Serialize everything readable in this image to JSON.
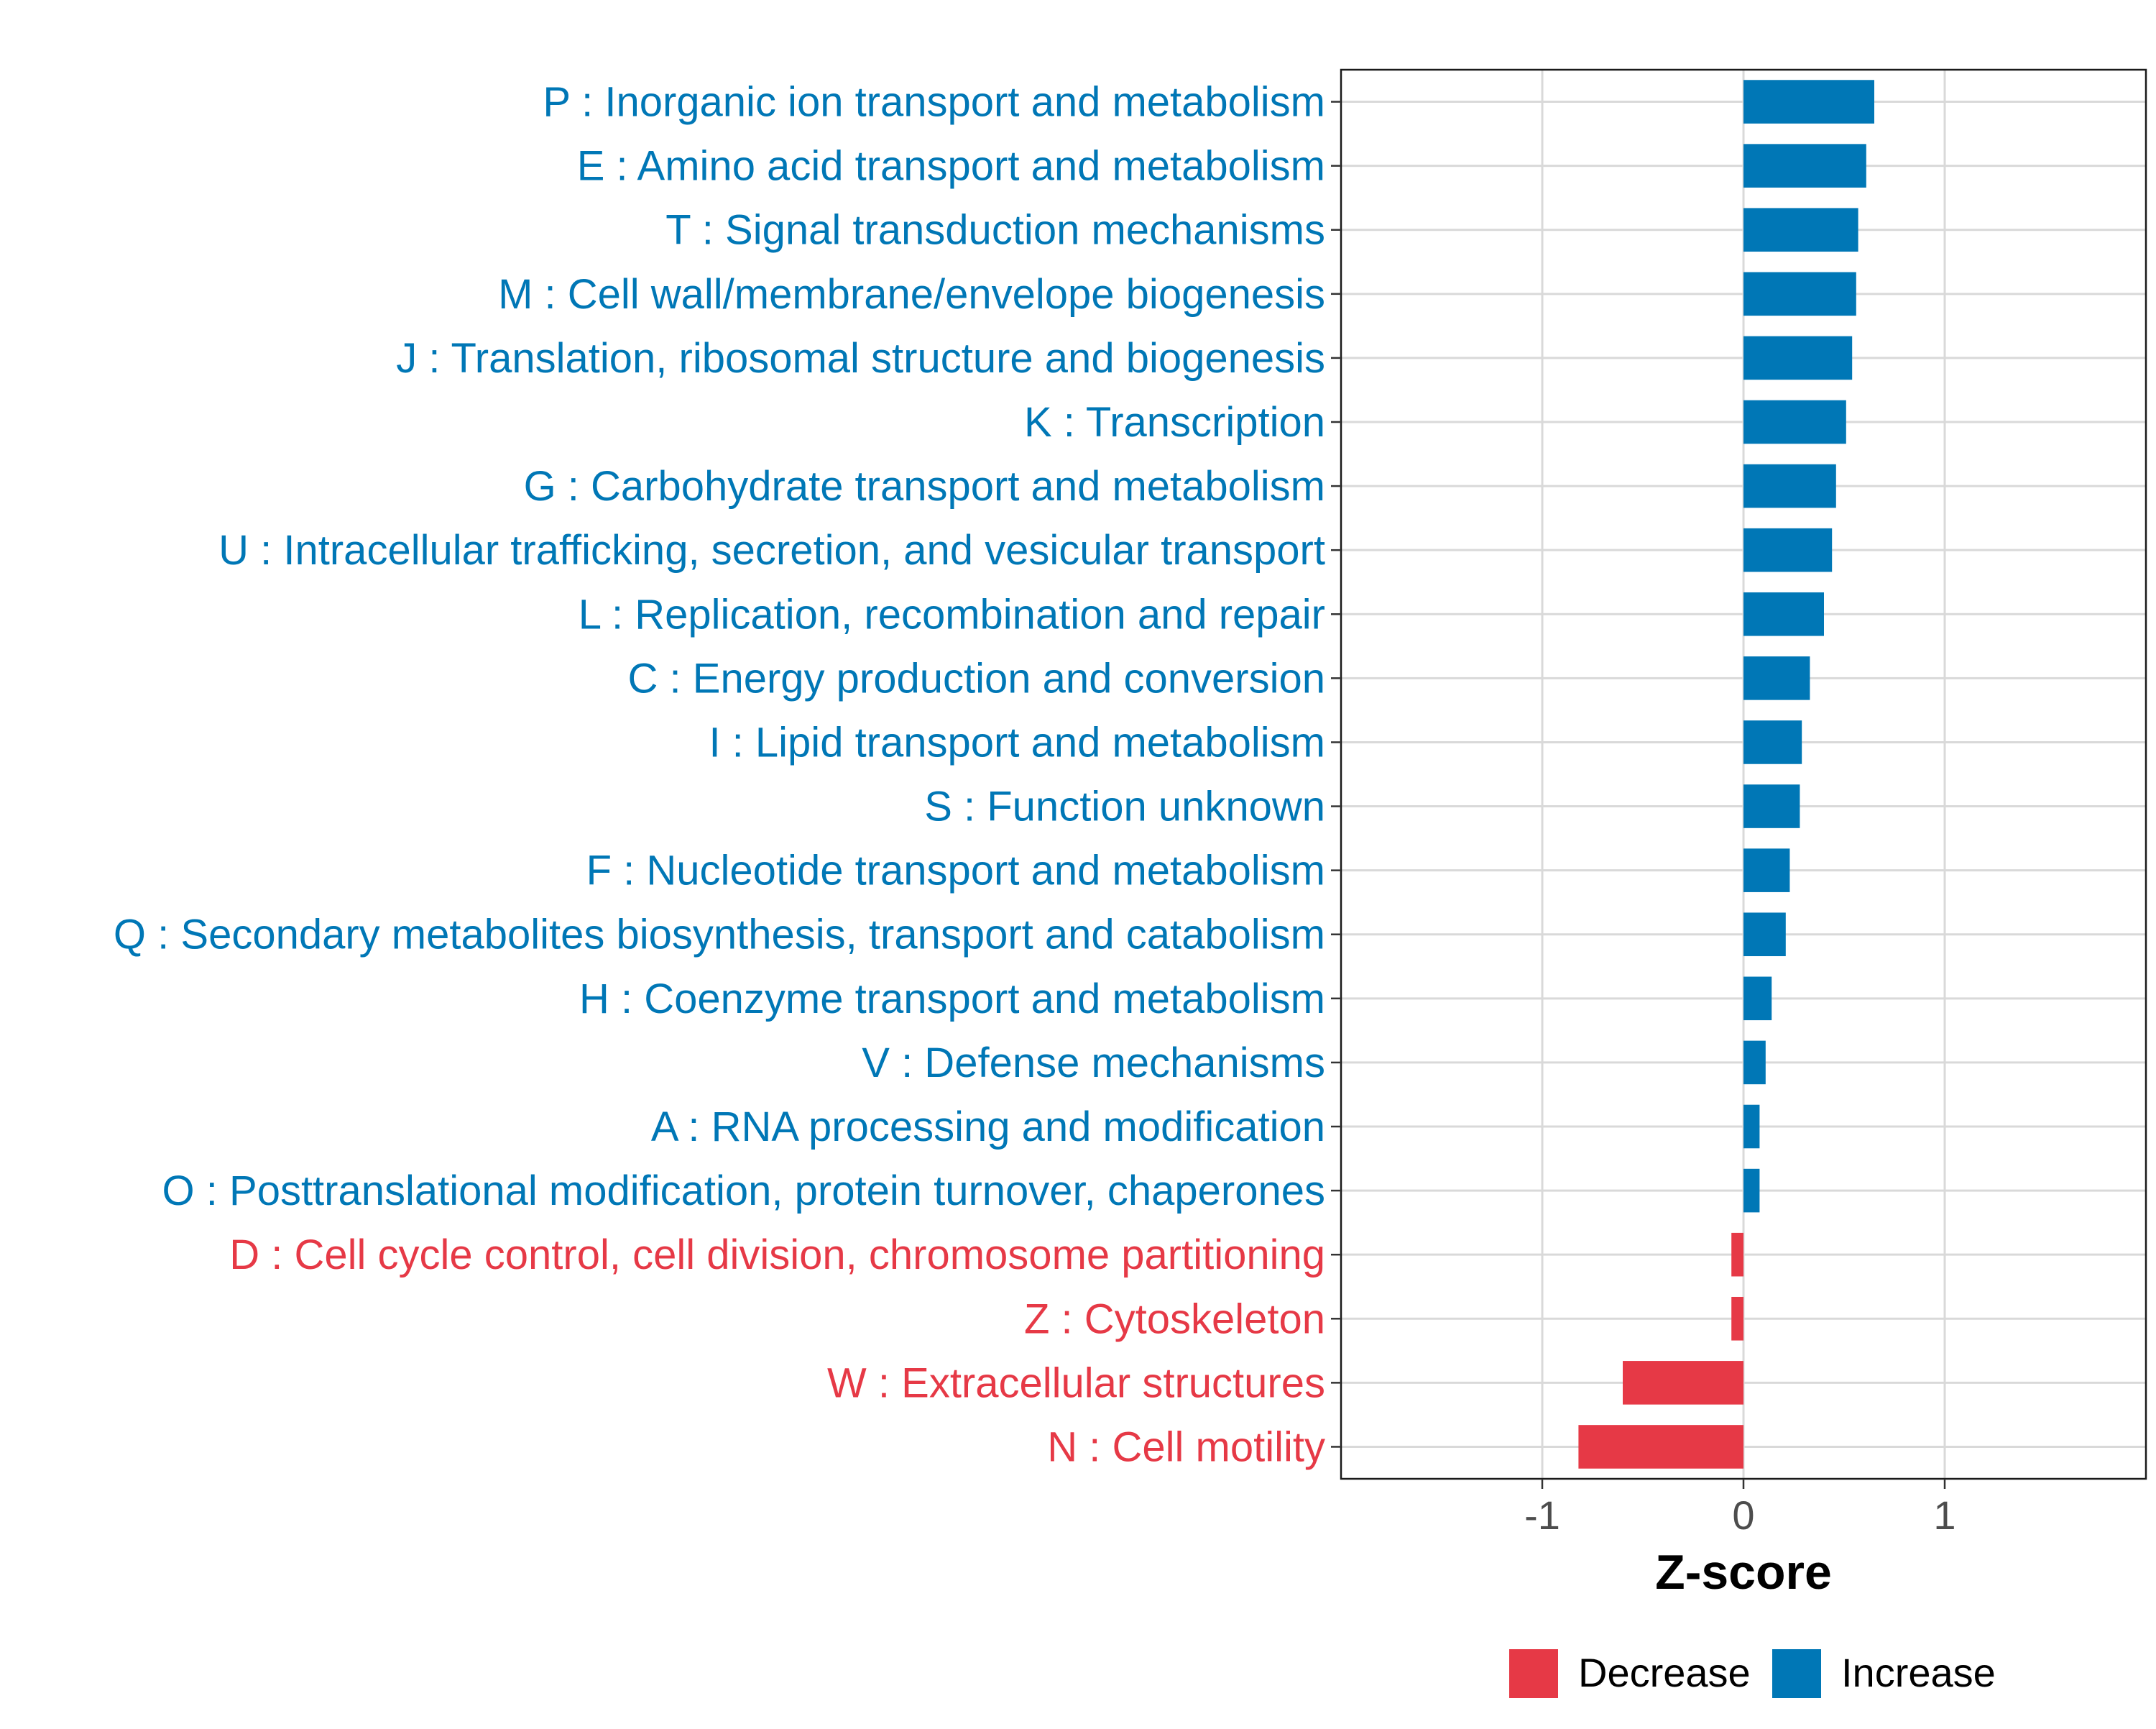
{
  "chart_data": {
    "type": "bar",
    "orientation": "horizontal",
    "title": "",
    "xlabel": "Z-score",
    "ylabel": "",
    "xlim": [
      -2,
      2
    ],
    "xticks": [
      -1,
      0,
      1
    ],
    "xtick_labels": [
      "-1",
      "0",
      "1"
    ],
    "grid": true,
    "legend_position": "bottom",
    "colors": {
      "Decrease": "#E63946",
      "Increase": "#0077B6"
    },
    "legend": [
      {
        "label": "Decrease",
        "color": "#E63946"
      },
      {
        "label": "Increase",
        "color": "#0077B6"
      }
    ],
    "categories": [
      "P : Inorganic ion transport and metabolism",
      "E : Amino acid transport and metabolism",
      "T : Signal transduction mechanisms",
      "M : Cell wall/membrane/envelope biogenesis",
      "J : Translation, ribosomal structure and biogenesis",
      "K : Transcription",
      "G : Carbohydrate transport and metabolism",
      "U : Intracellular trafficking, secretion, and vesicular transport",
      "L : Replication, recombination and repair",
      "C : Energy production and conversion",
      "I : Lipid transport and metabolism",
      "S : Function unknown",
      "F : Nucleotide transport and metabolism",
      "Q : Secondary metabolites biosynthesis, transport and catabolism",
      "H : Coenzyme transport and metabolism",
      "V : Defense mechanisms",
      "A : RNA processing and modification",
      "O : Posttranslational modification, protein turnover, chaperones",
      "D : Cell cycle control, cell division, chromosome partitioning",
      "Z : Cytoskeleton",
      "W : Extracellular structures",
      "N : Cell motility"
    ],
    "values": [
      0.65,
      0.61,
      0.57,
      0.56,
      0.54,
      0.51,
      0.46,
      0.44,
      0.4,
      0.33,
      0.29,
      0.28,
      0.23,
      0.21,
      0.14,
      0.11,
      0.08,
      0.08,
      -0.06,
      -0.06,
      -0.6,
      -0.82
    ],
    "groups": [
      "Increase",
      "Increase",
      "Increase",
      "Increase",
      "Increase",
      "Increase",
      "Increase",
      "Increase",
      "Increase",
      "Increase",
      "Increase",
      "Increase",
      "Increase",
      "Increase",
      "Increase",
      "Increase",
      "Increase",
      "Increase",
      "Decrease",
      "Decrease",
      "Decrease",
      "Decrease"
    ]
  }
}
